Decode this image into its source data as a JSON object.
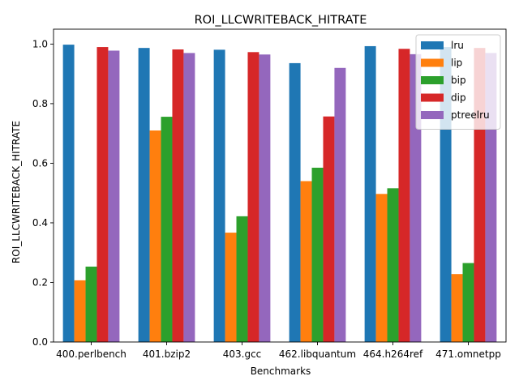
{
  "chart_data": {
    "type": "bar",
    "title": "ROI_LLCWRITEBACK_HITRATE",
    "xlabel": "Benchmarks",
    "ylabel": "ROI_LLCWRITEBACK_HITRATE",
    "categories": [
      "400.perlbench",
      "401.bzip2",
      "403.gcc",
      "462.libquantum",
      "464.h264ref",
      "471.omnetpp"
    ],
    "ylim": [
      0.0,
      1.05
    ],
    "yticks": [
      "0.0",
      "0.2",
      "0.4",
      "0.6",
      "0.8",
      "1.0"
    ],
    "grid": false,
    "legend_position": "top-right",
    "series": [
      {
        "name": "lru",
        "color": "#1f77b4",
        "values": [
          0.998,
          0.987,
          0.981,
          0.936,
          0.993,
          0.99
        ]
      },
      {
        "name": "lip",
        "color": "#ff7f0e",
        "values": [
          0.207,
          0.71,
          0.367,
          0.54,
          0.497,
          0.228
        ]
      },
      {
        "name": "bip",
        "color": "#2ca02c",
        "values": [
          0.253,
          0.756,
          0.422,
          0.585,
          0.516,
          0.265
        ]
      },
      {
        "name": "dip",
        "color": "#d62728",
        "values": [
          0.99,
          0.982,
          0.973,
          0.757,
          0.984,
          0.987
        ]
      },
      {
        "name": "ptreelru",
        "color": "#9467bd",
        "values": [
          0.978,
          0.97,
          0.965,
          0.92,
          0.966,
          0.97
        ]
      }
    ]
  }
}
